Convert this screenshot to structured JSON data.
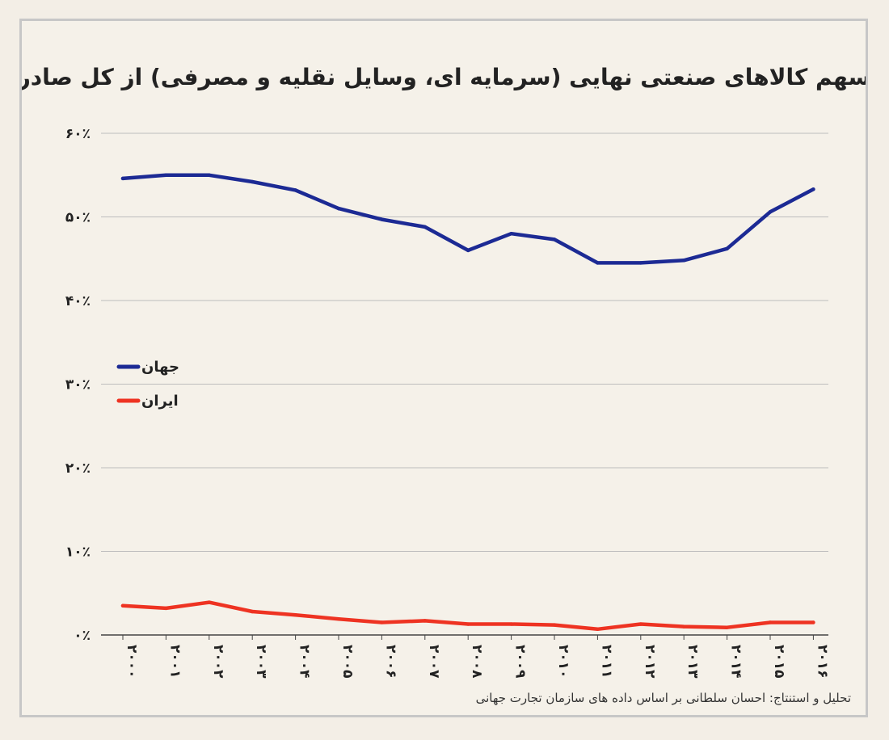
{
  "chart_data": {
    "type": "line",
    "title": "سهم کالاهای صنعتی نهایی (سرمایه ای، وسایل نقلیه و مصرفی) از کل صادرات ایران و جهان",
    "xlabel": "",
    "ylabel": "",
    "x": [
      "۲۰۰۰",
      "۲۰۰۱",
      "۲۰۰۲",
      "۲۰۰۳",
      "۲۰۰۴",
      "۲۰۰۵",
      "۲۰۰۶",
      "۲۰۰۷",
      "۲۰۰۸",
      "۲۰۰۹",
      "۲۰۱۰",
      "۲۰۱۱",
      "۲۰۱۲",
      "۲۰۱۳",
      "۲۰۱۴",
      "۲۰۱۵",
      "۲۰۱۶"
    ],
    "ylim": [
      0,
      60
    ],
    "yticks": [
      {
        "value": 0,
        "label": "۰٪"
      },
      {
        "value": 10,
        "label": "۱۰٪"
      },
      {
        "value": 20,
        "label": "۲۰٪"
      },
      {
        "value": 30,
        "label": "۳۰٪"
      },
      {
        "value": 40,
        "label": "۴۰٪"
      },
      {
        "value": 50,
        "label": "۵۰٪"
      },
      {
        "value": 60,
        "label": "۶۰٪"
      }
    ],
    "grid": true,
    "legend_position": "left",
    "series": [
      {
        "name": "جهان",
        "color": "#1c2a94",
        "values": [
          54.6,
          55.0,
          55.0,
          54.2,
          53.2,
          51.0,
          49.7,
          48.8,
          46.0,
          48.0,
          47.3,
          44.5,
          44.5,
          44.8,
          46.2,
          50.6,
          53.3
        ]
      },
      {
        "name": "ایران",
        "color": "#ee3322",
        "values": [
          3.5,
          3.2,
          3.9,
          2.8,
          2.4,
          1.9,
          1.5,
          1.7,
          1.3,
          1.3,
          1.2,
          0.7,
          1.3,
          1.0,
          0.9,
          1.5,
          1.5
        ]
      }
    ]
  },
  "credit": "تحلیل و استنتاج: احسان سلطانی بر اساس داده های سازمان تجارت جهانی"
}
